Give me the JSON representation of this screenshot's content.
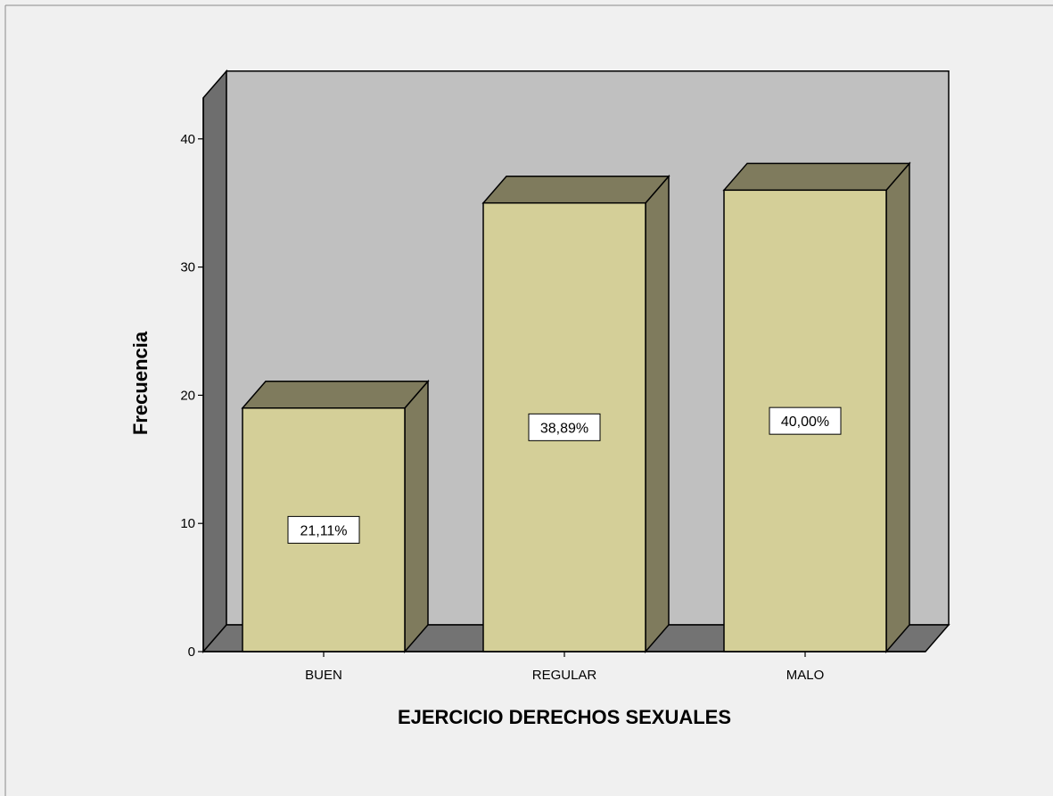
{
  "chart_data": {
    "type": "bar",
    "xlabel": "EJERCICIO DERECHOS SEXUALES",
    "ylabel": "Frecuencia",
    "categories": [
      "BUEN",
      "REGULAR",
      "MALO"
    ],
    "values": [
      19,
      35,
      36
    ],
    "data_labels": [
      "21,11%",
      "38,89%",
      "40,00%"
    ],
    "ylim": [
      0,
      40
    ],
    "yticks": [
      0,
      10,
      20,
      30,
      40
    ],
    "grid": false,
    "style": "3d",
    "colors": {
      "bar_front": "#d4cf98",
      "bar_top": "#7f7b5d",
      "bar_side": "#7f7b5d",
      "back_wall": "#c0c0c0",
      "side_wall": "#6e6e6e",
      "floor": "#737373",
      "background": "#f0f0f0"
    }
  }
}
